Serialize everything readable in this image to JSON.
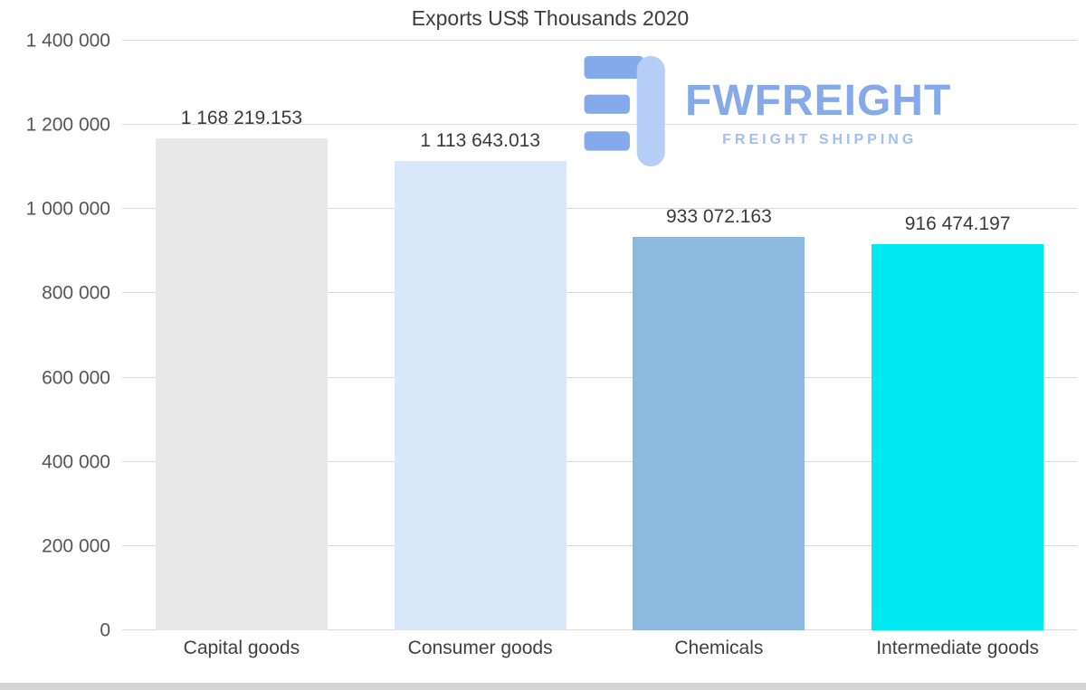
{
  "title": "Exports US$ Thousands 2020",
  "chart_data": {
    "type": "bar",
    "title": "Exports US$ Thousands 2020",
    "xlabel": "",
    "ylabel": "",
    "categories": [
      "Capital goods",
      "Consumer goods",
      "Chemicals",
      "Intermediate goods"
    ],
    "values": [
      1168219.153,
      1113643.013,
      933072.163,
      916474.197
    ],
    "value_labels": [
      "1 168 219.153",
      "1 113 643.013",
      "933 072.163",
      "916 474.197"
    ],
    "bar_colors": [
      "#e8e8e8",
      "#d9e8f8",
      "#8cbadf",
      "#00e9f0"
    ],
    "ylim": [
      0,
      1400000
    ],
    "yticks": [
      {
        "value": 0,
        "label": "0"
      },
      {
        "value": 200000,
        "label": "200 000"
      },
      {
        "value": 400000,
        "label": "400 000"
      },
      {
        "value": 600000,
        "label": "600 000"
      },
      {
        "value": 800000,
        "label": "800 000"
      },
      {
        "value": 1000000,
        "label": "1 000 000"
      },
      {
        "value": 1200000,
        "label": "1 200 000"
      },
      {
        "value": 1400000,
        "label": "1 400 000"
      }
    ],
    "grid": true,
    "legend": false
  },
  "watermark": {
    "brand": "FWFREIGHT",
    "tagline": "FREIGHT SHIPPING",
    "brand_color": "#7ca3e8",
    "tagline_color": "#9db9ee",
    "icon_dark": "#7ba3ea",
    "icon_light": "#b0caf5"
  },
  "colors": {
    "title_text": "#3d3d3d",
    "tick_text": "#555555",
    "gridline": "#d9d9d9",
    "background": "#ffffff",
    "bottom_strip": "#d4d4d4"
  }
}
